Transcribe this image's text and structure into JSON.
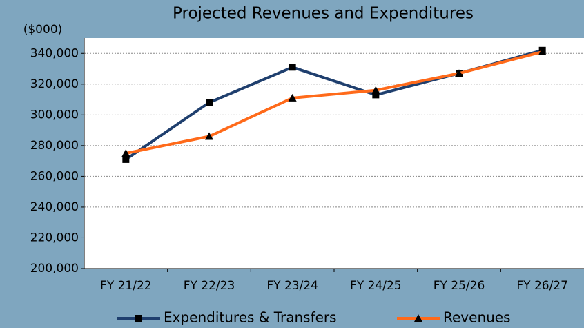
{
  "chart_data": {
    "type": "line",
    "title": "Projected Revenues and Expenditures",
    "y_axis_label": "($000)",
    "categories": [
      "FY 21/22",
      "FY 22/23",
      "FY 23/24",
      "FY 24/25",
      "FY 25/26",
      "FY 26/27"
    ],
    "series": [
      {
        "name": "Expenditures & Transfers",
        "color": "#1f3f6e",
        "marker": "square",
        "values": [
          271000,
          308000,
          331000,
          313000,
          327000,
          342000
        ]
      },
      {
        "name": "Revenues",
        "color": "#ff6a1a",
        "marker": "triangle",
        "values": [
          275000,
          286000,
          311000,
          316000,
          327000,
          341000
        ]
      }
    ],
    "ylim": [
      200000,
      350000
    ],
    "yticks": [
      {
        "value": 200000,
        "label": "200,000"
      },
      {
        "value": 220000,
        "label": "220,000"
      },
      {
        "value": 240000,
        "label": "240,000"
      },
      {
        "value": 260000,
        "label": "260,000"
      },
      {
        "value": 280000,
        "label": "280,000"
      },
      {
        "value": 300000,
        "label": "300,000"
      },
      {
        "value": 320000,
        "label": "320,000"
      },
      {
        "value": 340000,
        "label": "340,000"
      }
    ],
    "grid": true,
    "legend": "bottom"
  }
}
